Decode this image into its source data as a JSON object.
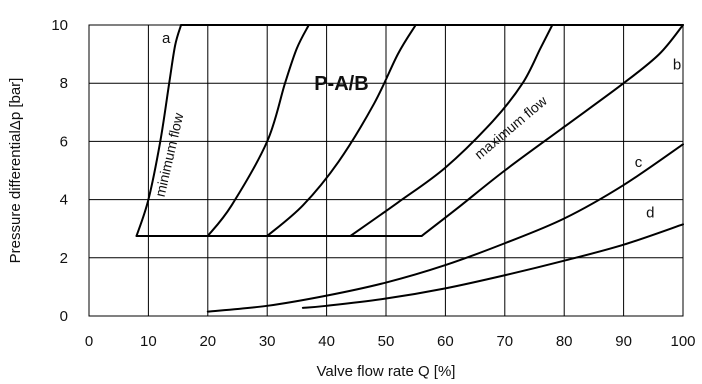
{
  "chart_data": {
    "type": "line",
    "title": "P-A/B",
    "xlabel": "Valve flow rate Q [%]",
    "ylabel": "Pressure differentialΔp [bar]",
    "xlim": [
      0,
      100
    ],
    "ylim": [
      0,
      10
    ],
    "x_ticks": [
      "0",
      "10",
      "20",
      "30",
      "40",
      "50",
      "60",
      "70",
      "80",
      "90",
      "100"
    ],
    "y_ticks": [
      "0",
      "2",
      "4",
      "6",
      "8",
      "10"
    ],
    "grid": true,
    "region": {
      "floor_dp": 2.75,
      "ceiling_dp": 10,
      "floor_x": [
        8,
        56
      ],
      "ceiling_x": [
        15.5,
        100
      ]
    },
    "series": [
      {
        "name": "a",
        "x": [
          8,
          10,
          12,
          13.5,
          14.5,
          15.5
        ],
        "y": [
          2.75,
          4,
          6,
          8,
          9.3,
          10
        ]
      },
      {
        "name": "",
        "x": [
          20,
          24,
          30,
          33,
          35,
          37
        ],
        "y": [
          2.75,
          3.8,
          6,
          8,
          9.2,
          10
        ]
      },
      {
        "name": "",
        "x": [
          30,
          36,
          42,
          48,
          52,
          55
        ],
        "y": [
          2.75,
          3.8,
          5.3,
          7.3,
          9,
          10
        ]
      },
      {
        "name": "",
        "x": [
          44,
          52,
          60,
          68,
          73,
          76,
          78
        ],
        "y": [
          2.75,
          3.9,
          5.1,
          6.7,
          8,
          9.2,
          10
        ]
      },
      {
        "name": "b",
        "x": [
          56,
          62,
          70,
          80,
          90,
          96,
          100
        ],
        "y": [
          2.75,
          3.7,
          5,
          6.5,
          8,
          9,
          10
        ]
      },
      {
        "name": "c",
        "x": [
          20,
          30,
          40,
          50,
          60,
          70,
          80,
          90,
          100
        ],
        "y": [
          0.15,
          0.35,
          0.7,
          1.15,
          1.75,
          2.5,
          3.35,
          4.5,
          5.9
        ]
      },
      {
        "name": "d",
        "x": [
          36,
          40,
          50,
          60,
          70,
          80,
          90,
          100
        ],
        "y": [
          0.28,
          0.35,
          0.6,
          0.95,
          1.4,
          1.9,
          2.45,
          3.15
        ]
      }
    ],
    "annotations": {
      "big_label": "P-A/B",
      "min_flow": "minimum  flow",
      "max_flow": "maximum  flow",
      "curve_labels": [
        {
          "text": "a",
          "x": 13,
          "y": 9.55
        },
        {
          "text": "b",
          "x": 99,
          "y": 8.65
        },
        {
          "text": "c",
          "x": 92.5,
          "y": 5.3
        },
        {
          "text": "d",
          "x": 94.5,
          "y": 3.55
        }
      ]
    }
  }
}
